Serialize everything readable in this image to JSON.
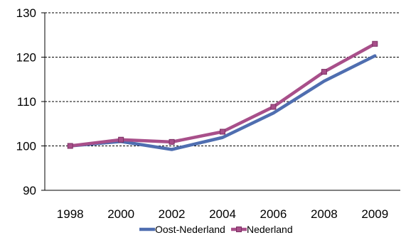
{
  "chart_data": {
    "type": "line",
    "categories": [
      "1998",
      "2000",
      "2002",
      "2004",
      "2006",
      "2008",
      "2009"
    ],
    "ylim": [
      90,
      130
    ],
    "yticks": [
      90,
      100,
      110,
      120,
      130
    ],
    "grid": true,
    "legend_position": "bottom",
    "series": [
      {
        "name": "Oost-Nederland",
        "color": "#4f6eb0",
        "marker": "none",
        "values": [
          100,
          101,
          99.2,
          101.9,
          107.4,
          114.6,
          120.3
        ]
      },
      {
        "name": "Nederland",
        "color": "#a84f8a",
        "marker": "square",
        "values": [
          100,
          101.4,
          100.9,
          103.2,
          108.8,
          116.7,
          123.0
        ]
      }
    ]
  }
}
